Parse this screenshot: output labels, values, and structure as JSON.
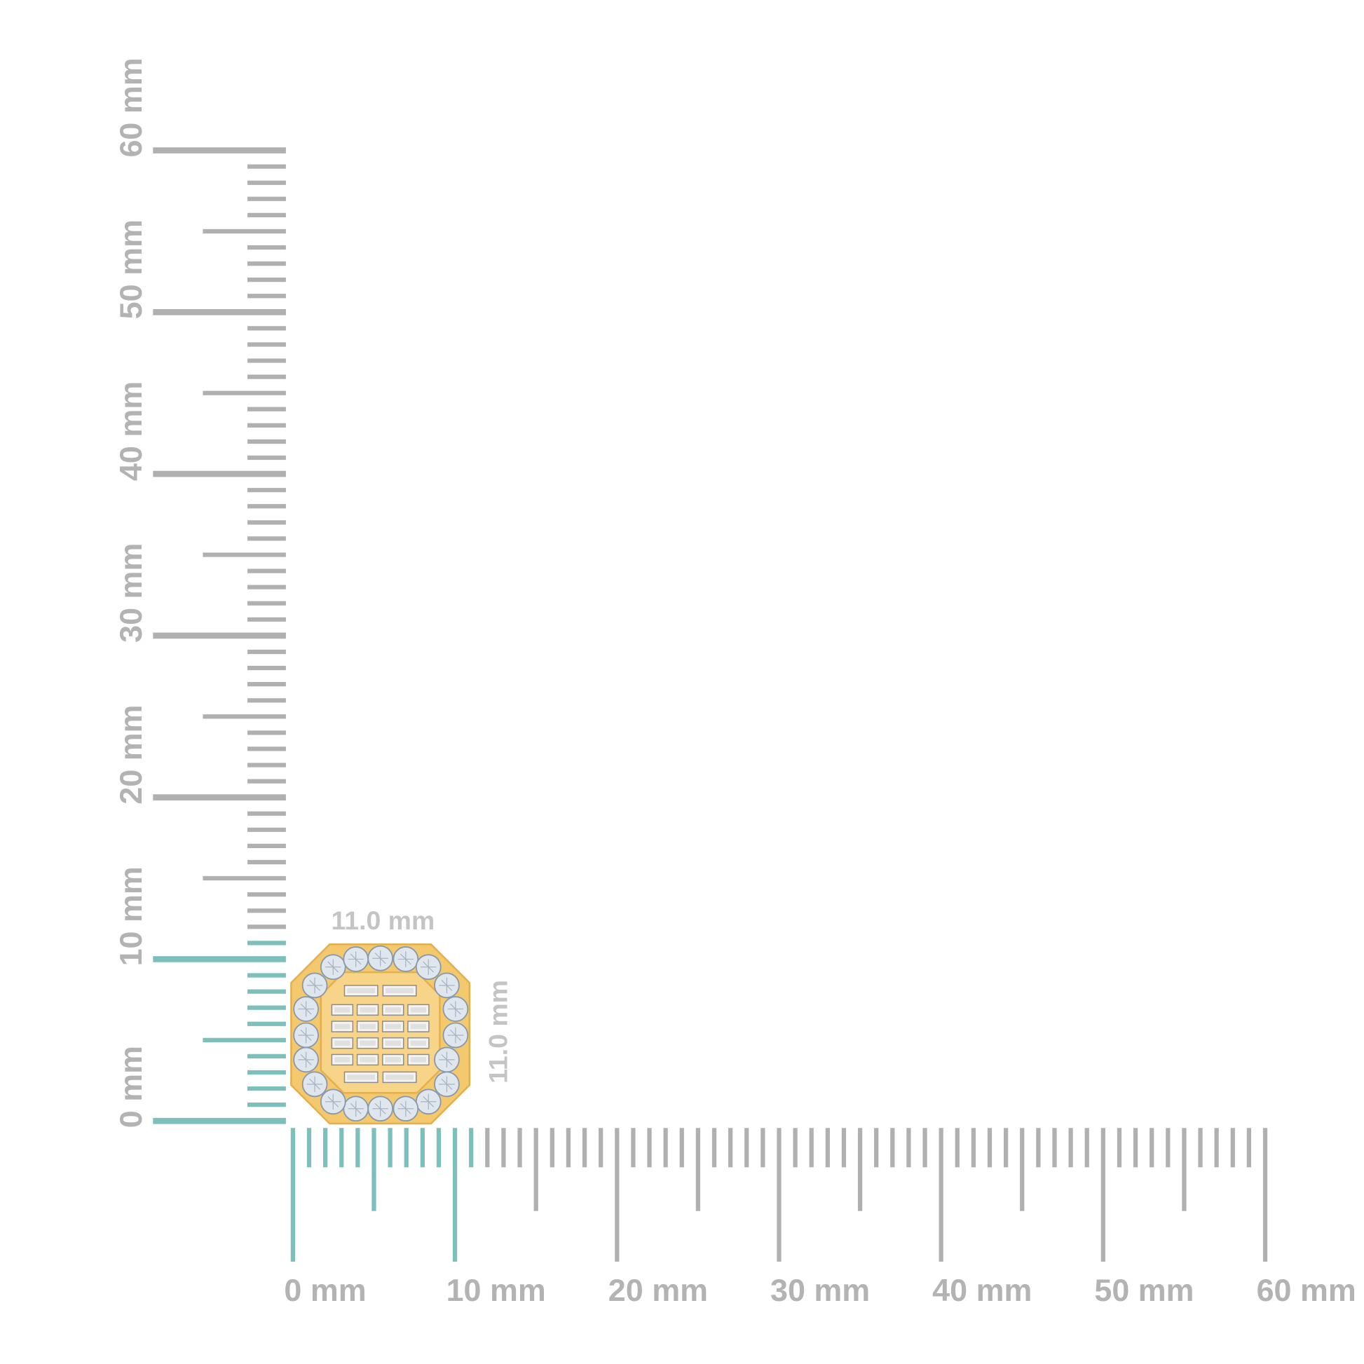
{
  "vertical_ruler": {
    "labels": [
      "0 mm",
      "10 mm",
      "20 mm",
      "30 mm",
      "40 mm",
      "50 mm",
      "60 mm"
    ],
    "max_mm": 60,
    "highlight_mm": 11
  },
  "horizontal_ruler": {
    "labels": [
      "0 mm",
      "10 mm",
      "20 mm",
      "30 mm",
      "40 mm",
      "50 mm",
      "60 mm"
    ],
    "max_mm": 60,
    "highlight_mm": 11
  },
  "product": {
    "width_label": "11.0 mm",
    "height_label": "11.0 mm",
    "round_stones": 20,
    "baguette_rows": 6
  },
  "colors": {
    "tick": "#b0b0b0",
    "highlight": "#7cbfbb",
    "gold": "#f4c86c",
    "gold_dark": "#e2b04f",
    "stone": "#dfe6ee"
  }
}
